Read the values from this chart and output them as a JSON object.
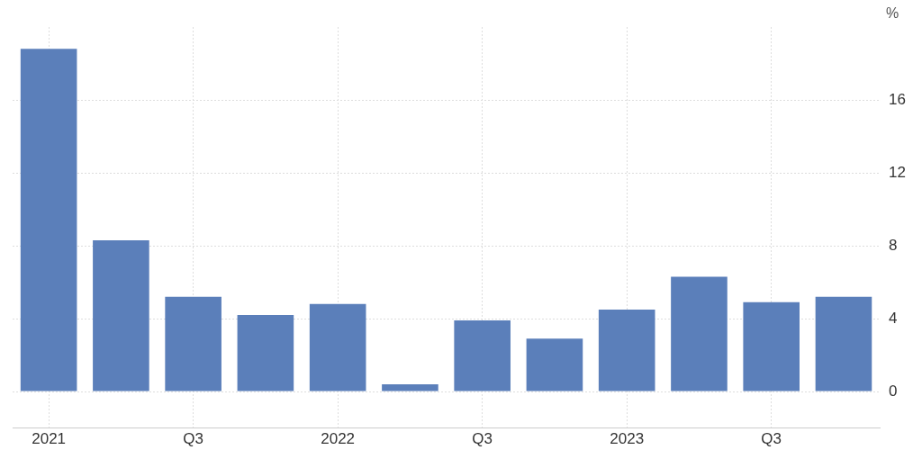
{
  "chart_data": {
    "type": "bar",
    "ylabel": "%",
    "categories": [
      "2021",
      null,
      "Q3",
      null,
      "2022",
      null,
      "Q3",
      null,
      "2023",
      null,
      "Q3",
      null
    ],
    "values": [
      18.8,
      8.3,
      5.2,
      4.2,
      4.8,
      0.4,
      3.9,
      2.9,
      4.5,
      6.3,
      4.9,
      5.2
    ],
    "color": "#5b7fba",
    "ylim": [
      -2,
      20
    ],
    "yticks": [
      0,
      4,
      8,
      12,
      16
    ],
    "grid": true,
    "legend": false
  }
}
